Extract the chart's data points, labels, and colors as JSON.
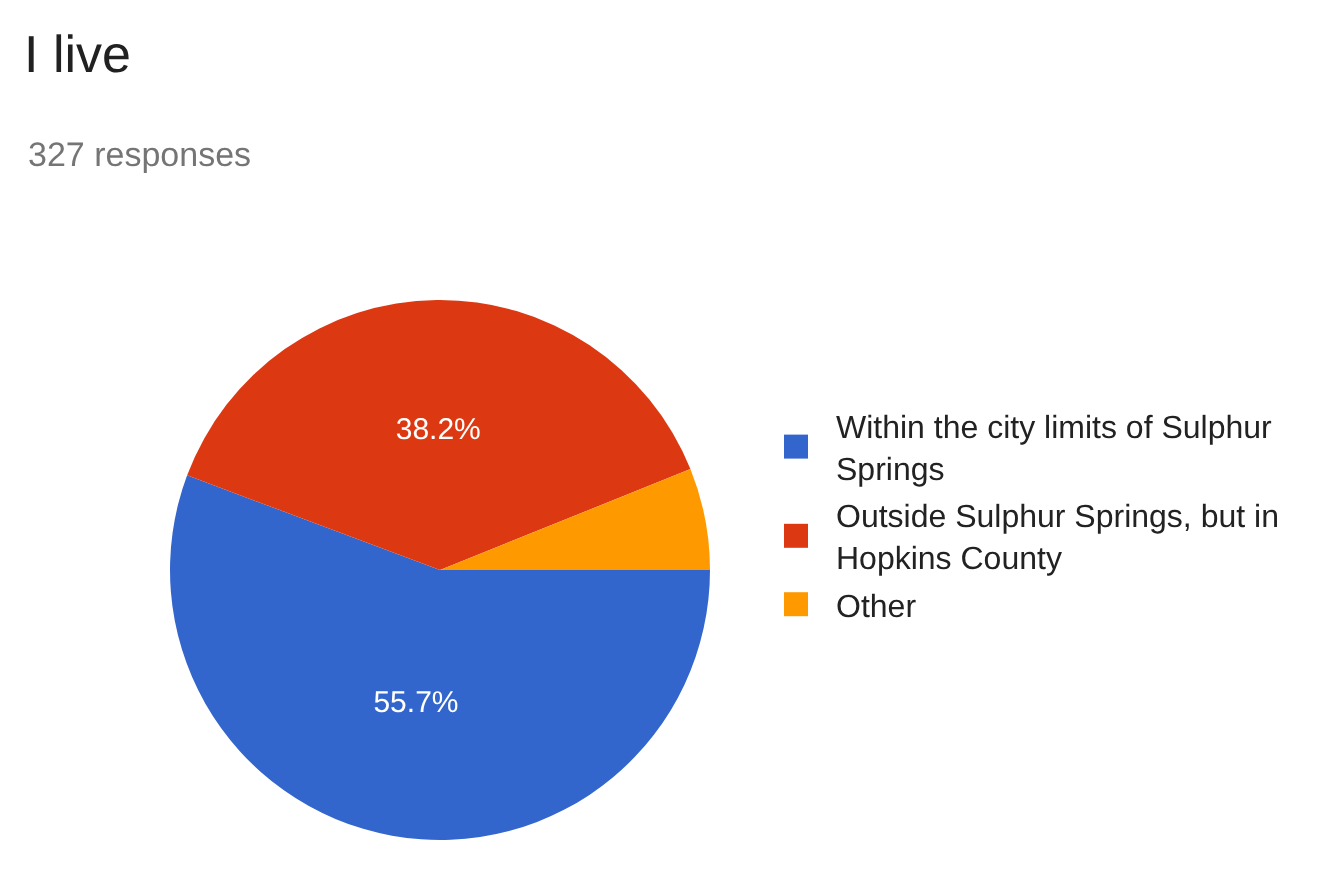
{
  "chart_data": {
    "type": "pie",
    "title": "I live",
    "subtitle": "327 responses",
    "categories": [
      "Within the city limits of Sulphur Springs",
      "Outside Sulphur Springs, but in Hopkins County",
      "Other"
    ],
    "values": [
      55.7,
      38.2,
      6.1
    ],
    "colors": [
      "#3366cc",
      "#dc3912",
      "#ff9900"
    ],
    "value_labels": [
      "55.7%",
      "38.2%",
      null
    ],
    "legend": "right"
  }
}
